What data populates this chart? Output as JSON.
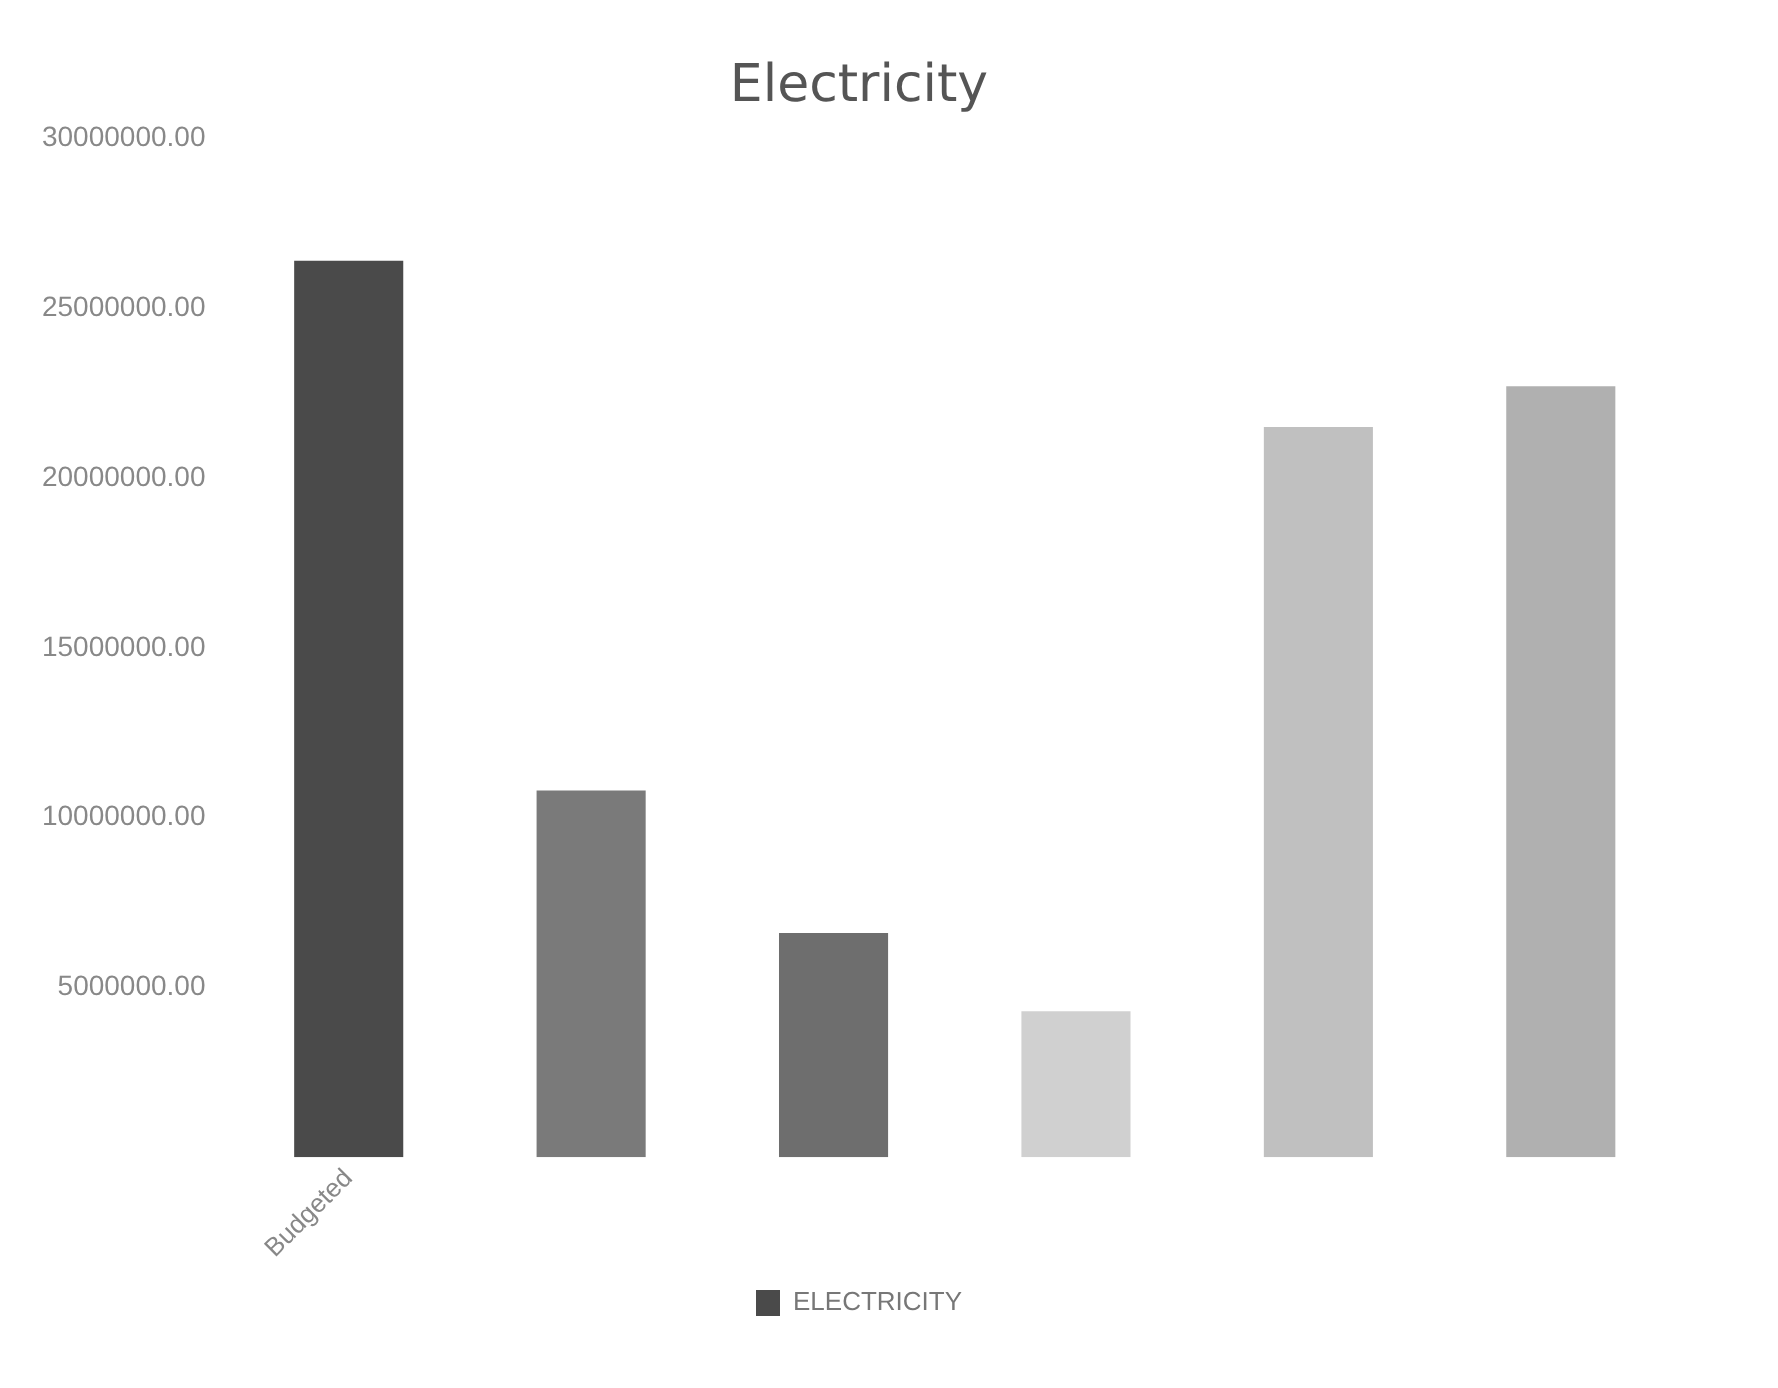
{
  "chart_data": {
    "type": "bar",
    "title": "Electricity",
    "categories": [
      "Budgeted",
      null,
      null,
      null,
      null,
      null
    ],
    "series": [
      {
        "name": "ELECTRICITY",
        "values": [
          26400000,
          10800000,
          6600000,
          4300000,
          21500000,
          22700000
        ],
        "colors": [
          "#4a4a4a",
          "#7a7a7a",
          "#6e6e6e",
          "#d0d0d0",
          "#c0c0c0",
          "#b0b0b0"
        ]
      }
    ],
    "ylim": [
      0,
      30000000
    ],
    "yticks": [
      {
        "value": 5000000,
        "label": "5000000.00"
      },
      {
        "value": 10000000,
        "label": "10000000.00"
      },
      {
        "value": 15000000,
        "label": "15000000.00"
      },
      {
        "value": 20000000,
        "label": "20000000.00"
      },
      {
        "value": 25000000,
        "label": "25000000.00"
      },
      {
        "value": 30000000,
        "label": "30000000.00"
      }
    ],
    "grid": false,
    "legend": "bottom"
  }
}
